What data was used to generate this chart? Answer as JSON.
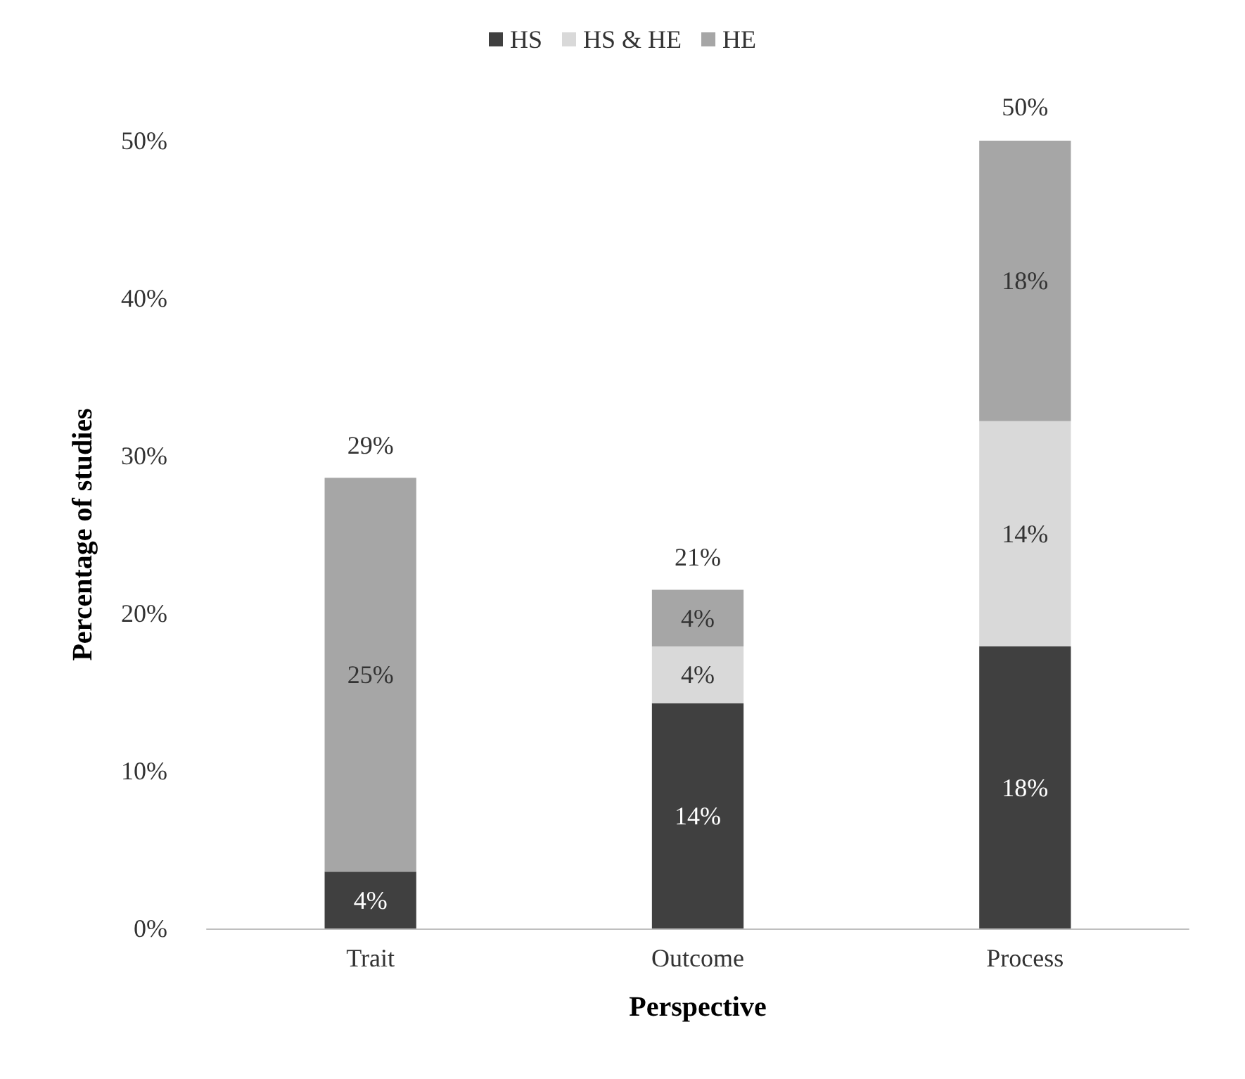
{
  "chart_data": {
    "type": "bar",
    "stacked": true,
    "xlabel": "Perspective",
    "ylabel": "Percentage of studies",
    "categories": [
      "Trait",
      "Outcome",
      "Process"
    ],
    "series": [
      {
        "name": "HS",
        "color": "#404040",
        "values": [
          3.6,
          14.3,
          17.9
        ],
        "value_labels": [
          "4%",
          "14%",
          "18%"
        ]
      },
      {
        "name": "HS & HE",
        "color": "#d9d9d9",
        "values": [
          null,
          3.6,
          14.3
        ],
        "value_labels": [
          null,
          "4%",
          "14%"
        ]
      },
      {
        "name": "HE",
        "color": "#a6a6a6",
        "values": [
          25.0,
          3.6,
          17.9
        ],
        "value_labels": [
          "25%",
          "4%",
          "18%"
        ]
      }
    ],
    "totals": [
      "29%",
      "21%",
      "50%"
    ],
    "ylim": [
      0,
      50
    ],
    "yticks": [
      {
        "value": 0,
        "label": "0%"
      },
      {
        "value": 10,
        "label": "10%"
      },
      {
        "value": 20,
        "label": "20%"
      },
      {
        "value": 30,
        "label": "30%"
      },
      {
        "value": 40,
        "label": "40%"
      },
      {
        "value": 50,
        "label": "50%"
      }
    ],
    "grid": false,
    "legend": "top"
  }
}
